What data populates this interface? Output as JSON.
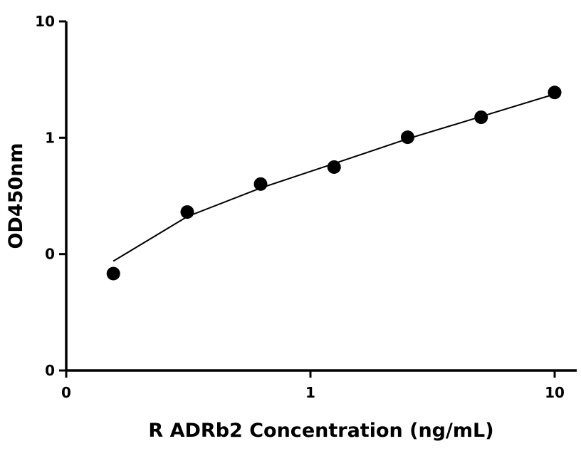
{
  "chart_data": {
    "type": "scatter",
    "title": "",
    "xlabel": "R ADRb2 Concentration (ng/mL)",
    "ylabel": "OD450nm",
    "x_scale": "log",
    "y_scale": "log",
    "xlim": [
      0.1,
      10
    ],
    "ylim": [
      0.01,
      10
    ],
    "x_tick_values": [
      0.1,
      1,
      10
    ],
    "x_tick_labels": [
      "0",
      "1",
      "10"
    ],
    "y_tick_values": [
      0.01,
      0.1,
      1,
      10
    ],
    "y_tick_labels": [
      "0",
      "0",
      "1",
      "10"
    ],
    "grid": false,
    "legend": "none",
    "series": [
      {
        "points": [
          {
            "x": 0.156,
            "y": 0.068
          },
          {
            "x": 0.313,
            "y": 0.23
          },
          {
            "x": 0.625,
            "y": 0.4
          },
          {
            "x": 1.25,
            "y": 0.56
          },
          {
            "x": 2.5,
            "y": 1.01
          },
          {
            "x": 5,
            "y": 1.5
          },
          {
            "x": 10,
            "y": 2.45
          }
        ],
        "fit_curve": [
          {
            "x": 0.156,
            "y": 0.087
          },
          {
            "x": 0.313,
            "y": 0.21
          },
          {
            "x": 0.625,
            "y": 0.37
          },
          {
            "x": 1.25,
            "y": 0.6
          },
          {
            "x": 2.5,
            "y": 0.98
          },
          {
            "x": 5,
            "y": 1.52
          },
          {
            "x": 10,
            "y": 2.37
          }
        ]
      }
    ],
    "colors": {
      "points": "#000000",
      "curve": "#000000",
      "axes": "#000000"
    }
  }
}
